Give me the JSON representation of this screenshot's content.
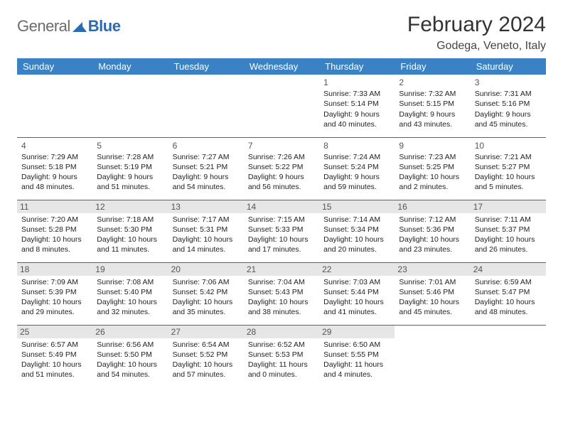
{
  "logo": {
    "text1": "General",
    "text2": "Blue"
  },
  "title": "February 2024",
  "location": "Godega, Veneto, Italy",
  "colors": {
    "header_bg": "#3b82c4",
    "header_fg": "#ffffff",
    "border": "#2d6ab0",
    "shade": "#e6e6e6",
    "logo_gray": "#6b6b6b",
    "logo_blue": "#2d6ab0"
  },
  "daynames": [
    "Sunday",
    "Monday",
    "Tuesday",
    "Wednesday",
    "Thursday",
    "Friday",
    "Saturday"
  ],
  "weeks": [
    [
      null,
      null,
      null,
      null,
      {
        "n": "1",
        "sr": "Sunrise: 7:33 AM",
        "ss": "Sunset: 5:14 PM",
        "dl": "Daylight: 9 hours and 40 minutes."
      },
      {
        "n": "2",
        "sr": "Sunrise: 7:32 AM",
        "ss": "Sunset: 5:15 PM",
        "dl": "Daylight: 9 hours and 43 minutes."
      },
      {
        "n": "3",
        "sr": "Sunrise: 7:31 AM",
        "ss": "Sunset: 5:16 PM",
        "dl": "Daylight: 9 hours and 45 minutes."
      }
    ],
    [
      {
        "n": "4",
        "sr": "Sunrise: 7:29 AM",
        "ss": "Sunset: 5:18 PM",
        "dl": "Daylight: 9 hours and 48 minutes."
      },
      {
        "n": "5",
        "sr": "Sunrise: 7:28 AM",
        "ss": "Sunset: 5:19 PM",
        "dl": "Daylight: 9 hours and 51 minutes."
      },
      {
        "n": "6",
        "sr": "Sunrise: 7:27 AM",
        "ss": "Sunset: 5:21 PM",
        "dl": "Daylight: 9 hours and 54 minutes."
      },
      {
        "n": "7",
        "sr": "Sunrise: 7:26 AM",
        "ss": "Sunset: 5:22 PM",
        "dl": "Daylight: 9 hours and 56 minutes."
      },
      {
        "n": "8",
        "sr": "Sunrise: 7:24 AM",
        "ss": "Sunset: 5:24 PM",
        "dl": "Daylight: 9 hours and 59 minutes."
      },
      {
        "n": "9",
        "sr": "Sunrise: 7:23 AM",
        "ss": "Sunset: 5:25 PM",
        "dl": "Daylight: 10 hours and 2 minutes."
      },
      {
        "n": "10",
        "sr": "Sunrise: 7:21 AM",
        "ss": "Sunset: 5:27 PM",
        "dl": "Daylight: 10 hours and 5 minutes."
      }
    ],
    [
      {
        "n": "11",
        "sr": "Sunrise: 7:20 AM",
        "ss": "Sunset: 5:28 PM",
        "dl": "Daylight: 10 hours and 8 minutes."
      },
      {
        "n": "12",
        "sr": "Sunrise: 7:18 AM",
        "ss": "Sunset: 5:30 PM",
        "dl": "Daylight: 10 hours and 11 minutes."
      },
      {
        "n": "13",
        "sr": "Sunrise: 7:17 AM",
        "ss": "Sunset: 5:31 PM",
        "dl": "Daylight: 10 hours and 14 minutes."
      },
      {
        "n": "14",
        "sr": "Sunrise: 7:15 AM",
        "ss": "Sunset: 5:33 PM",
        "dl": "Daylight: 10 hours and 17 minutes."
      },
      {
        "n": "15",
        "sr": "Sunrise: 7:14 AM",
        "ss": "Sunset: 5:34 PM",
        "dl": "Daylight: 10 hours and 20 minutes."
      },
      {
        "n": "16",
        "sr": "Sunrise: 7:12 AM",
        "ss": "Sunset: 5:36 PM",
        "dl": "Daylight: 10 hours and 23 minutes."
      },
      {
        "n": "17",
        "sr": "Sunrise: 7:11 AM",
        "ss": "Sunset: 5:37 PM",
        "dl": "Daylight: 10 hours and 26 minutes."
      }
    ],
    [
      {
        "n": "18",
        "sr": "Sunrise: 7:09 AM",
        "ss": "Sunset: 5:39 PM",
        "dl": "Daylight: 10 hours and 29 minutes."
      },
      {
        "n": "19",
        "sr": "Sunrise: 7:08 AM",
        "ss": "Sunset: 5:40 PM",
        "dl": "Daylight: 10 hours and 32 minutes."
      },
      {
        "n": "20",
        "sr": "Sunrise: 7:06 AM",
        "ss": "Sunset: 5:42 PM",
        "dl": "Daylight: 10 hours and 35 minutes."
      },
      {
        "n": "21",
        "sr": "Sunrise: 7:04 AM",
        "ss": "Sunset: 5:43 PM",
        "dl": "Daylight: 10 hours and 38 minutes."
      },
      {
        "n": "22",
        "sr": "Sunrise: 7:03 AM",
        "ss": "Sunset: 5:44 PM",
        "dl": "Daylight: 10 hours and 41 minutes."
      },
      {
        "n": "23",
        "sr": "Sunrise: 7:01 AM",
        "ss": "Sunset: 5:46 PM",
        "dl": "Daylight: 10 hours and 45 minutes."
      },
      {
        "n": "24",
        "sr": "Sunrise: 6:59 AM",
        "ss": "Sunset: 5:47 PM",
        "dl": "Daylight: 10 hours and 48 minutes."
      }
    ],
    [
      {
        "n": "25",
        "sr": "Sunrise: 6:57 AM",
        "ss": "Sunset: 5:49 PM",
        "dl": "Daylight: 10 hours and 51 minutes."
      },
      {
        "n": "26",
        "sr": "Sunrise: 6:56 AM",
        "ss": "Sunset: 5:50 PM",
        "dl": "Daylight: 10 hours and 54 minutes."
      },
      {
        "n": "27",
        "sr": "Sunrise: 6:54 AM",
        "ss": "Sunset: 5:52 PM",
        "dl": "Daylight: 10 hours and 57 minutes."
      },
      {
        "n": "28",
        "sr": "Sunrise: 6:52 AM",
        "ss": "Sunset: 5:53 PM",
        "dl": "Daylight: 11 hours and 0 minutes."
      },
      {
        "n": "29",
        "sr": "Sunrise: 6:50 AM",
        "ss": "Sunset: 5:55 PM",
        "dl": "Daylight: 11 hours and 4 minutes."
      },
      null,
      null
    ]
  ],
  "shaded_rows": [
    2,
    3,
    4
  ]
}
